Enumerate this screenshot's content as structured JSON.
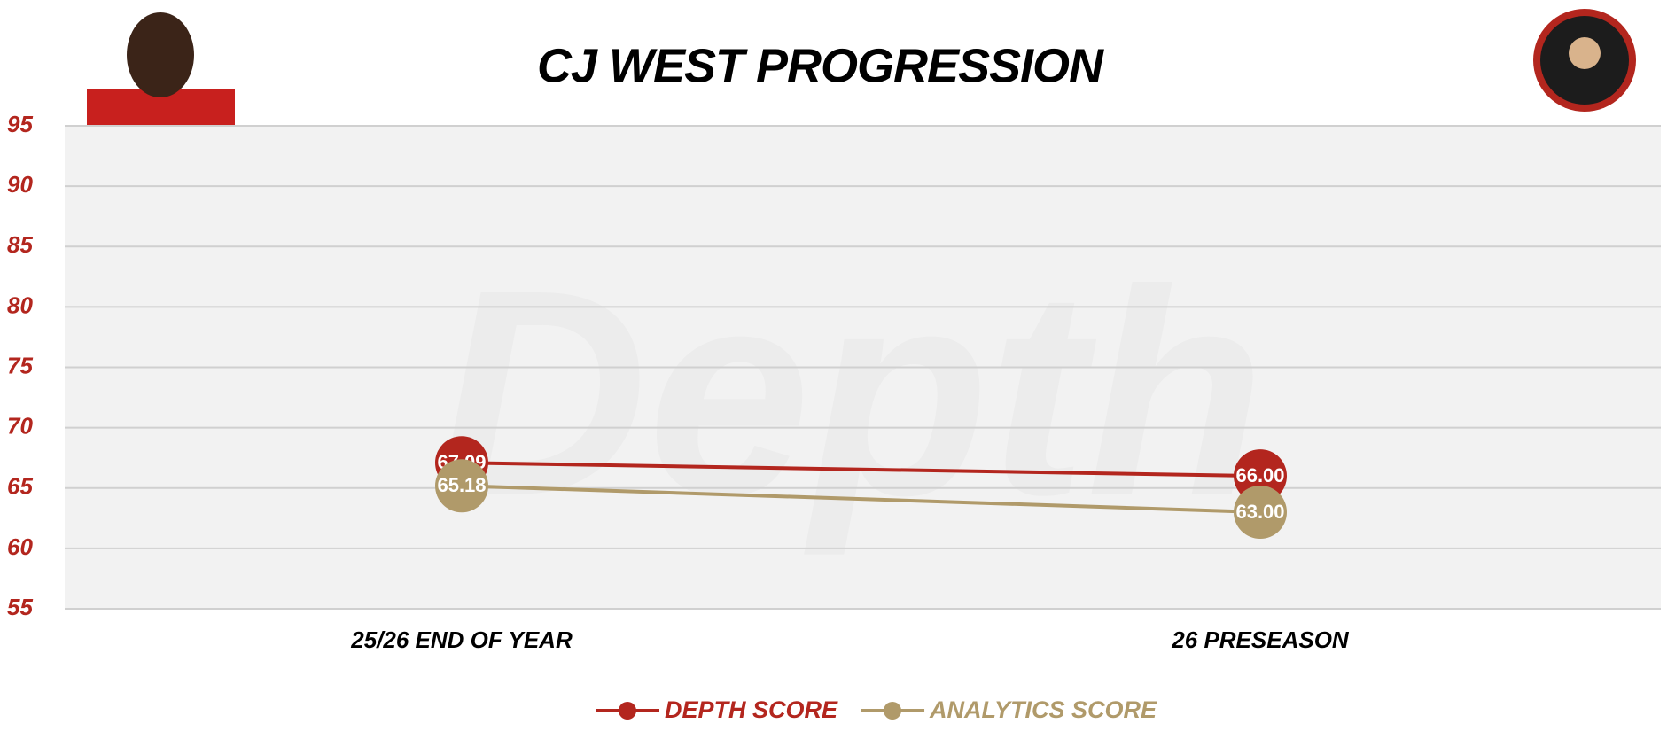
{
  "chart_data": {
    "type": "line",
    "title": "CJ WEST PROGRESSION",
    "watermark": "Depth",
    "categories": [
      "25/26 END OF YEAR",
      "26 PRESEASON"
    ],
    "series": [
      {
        "name": "DEPTH SCORE",
        "color": "#b3261e",
        "values": [
          67.09,
          66
        ],
        "value_labels": [
          "67.09",
          "66.00"
        ]
      },
      {
        "name": "ANALYTICS SCORE",
        "color": "#b09a6a",
        "values": [
          65.18,
          63
        ],
        "value_labels": [
          "65.18",
          "63.00"
        ]
      }
    ],
    "ylim": [
      55,
      95
    ],
    "yticks": [
      55,
      60,
      65,
      70,
      75,
      80,
      85,
      90,
      95
    ],
    "grid": true,
    "tick_color": "#b3261e",
    "legend": "bottom"
  }
}
